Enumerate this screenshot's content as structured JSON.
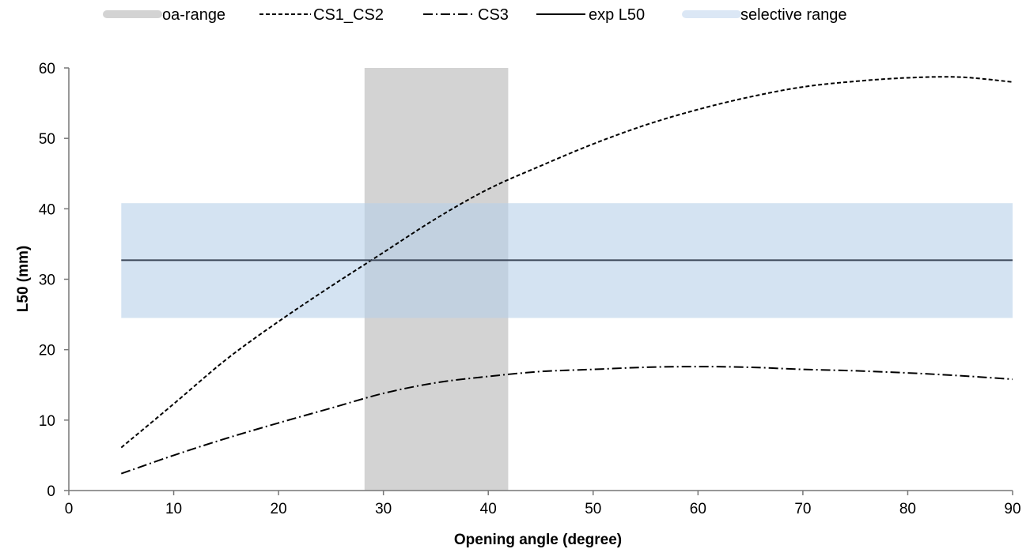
{
  "chart_data": {
    "type": "line",
    "xlabel": "Opening angle (degree)",
    "ylabel": "L50 (mm)",
    "xlim": [
      0,
      90
    ],
    "ylim": [
      0,
      60
    ],
    "xticks": [
      0,
      10,
      20,
      30,
      40,
      50,
      60,
      70,
      80,
      90
    ],
    "yticks": [
      0,
      10,
      20,
      30,
      40,
      50,
      60
    ],
    "grid": false,
    "legend_position": "top",
    "legend": [
      "oa-range",
      "CS1_CS2",
      "CS3",
      "exp L50",
      "selective range"
    ],
    "bands": [
      {
        "name": "oa-range",
        "orientation": "vertical",
        "from": 28.2,
        "to": 41.9,
        "color": "#d3d3d3"
      },
      {
        "name": "selective range",
        "orientation": "horizontal",
        "from": 24.5,
        "to": 40.8,
        "xfrom": 5,
        "xto": 90,
        "color": "#b8d0ea"
      }
    ],
    "series": [
      {
        "name": "CS1_CS2",
        "style": "dashed",
        "color": "#000000",
        "x": [
          5,
          10,
          15,
          20,
          25,
          30,
          35,
          40,
          45,
          50,
          55,
          60,
          65,
          70,
          75,
          80,
          85,
          90
        ],
        "y": [
          6.1,
          12.3,
          18.6,
          24.0,
          29.0,
          33.8,
          38.6,
          42.8,
          46.1,
          49.2,
          51.9,
          54.1,
          55.9,
          57.3,
          58.1,
          58.6,
          58.7,
          58.0
        ]
      },
      {
        "name": "CS3",
        "style": "dashdot",
        "color": "#000000",
        "x": [
          5,
          10,
          15,
          20,
          25,
          30,
          35,
          40,
          45,
          50,
          55,
          60,
          65,
          70,
          75,
          80,
          85,
          90
        ],
        "y": [
          2.4,
          5.0,
          7.4,
          9.6,
          11.7,
          13.8,
          15.3,
          16.2,
          16.9,
          17.2,
          17.5,
          17.6,
          17.5,
          17.2,
          17.0,
          16.7,
          16.3,
          15.8
        ]
      },
      {
        "name": "exp L50",
        "style": "solid",
        "color": "#000000",
        "x": [
          5,
          90
        ],
        "y": [
          32.7,
          32.7
        ]
      }
    ]
  }
}
